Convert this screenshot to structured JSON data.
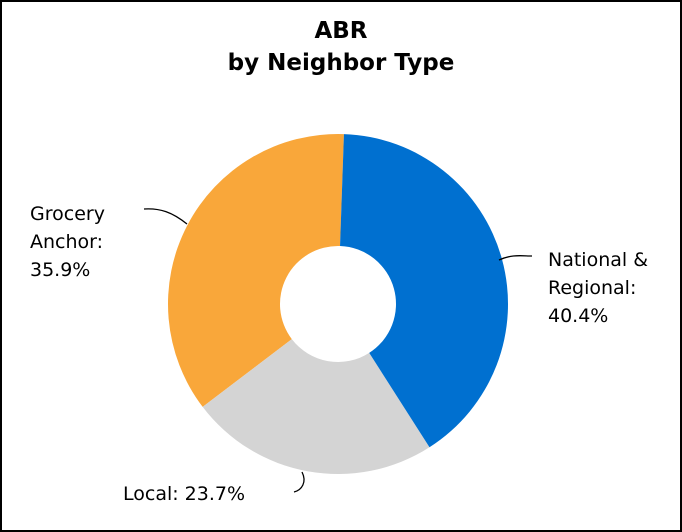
{
  "chart_data": {
    "type": "donut",
    "title": "ABR",
    "subtitle": "by Neighbor Type",
    "categories": [
      "National & Regional",
      "Local",
      "Grocery Anchor"
    ],
    "values": [
      40.4,
      23.7,
      35.9
    ],
    "value_labels": [
      "National & Regional: 40.4%",
      "Local: 23.7%",
      "Grocery Anchor: 35.9%"
    ],
    "colors": [
      "#0070d0",
      "#d4d4d4",
      "#f9a73a"
    ]
  }
}
